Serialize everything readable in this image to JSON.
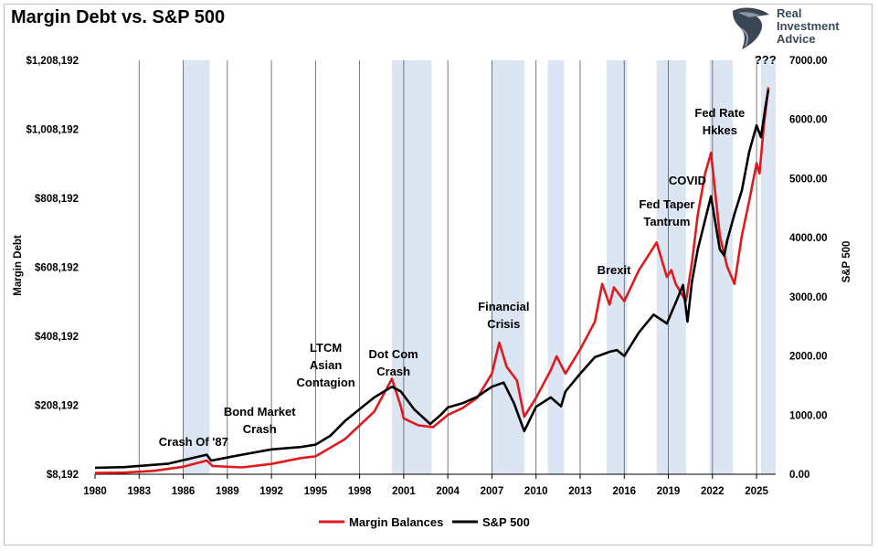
{
  "title": "Margin Debt vs. S&P 500",
  "logo": {
    "lines": [
      "Real",
      "Investment",
      "Advice"
    ],
    "icon": "eagle-head-icon"
  },
  "colors": {
    "margin": "#e0191e",
    "spx": "#000000",
    "shade": "#dce6f2",
    "grid": "#595959"
  },
  "chart_data": {
    "type": "line",
    "title": "Margin Debt vs. S&P 500",
    "ylabel": "Margin Debt",
    "y2label": "S&P 500",
    "ylim": [
      8192,
      1208192
    ],
    "y2lim": [
      0,
      7000
    ],
    "xlim": [
      1980,
      2026.3
    ],
    "y_ticks": [
      "$8,192",
      "$208,192",
      "$408,192",
      "$608,192",
      "$808,192",
      "$1,008,192",
      "$1,208,192"
    ],
    "y_tick_values": [
      8192,
      208192,
      408192,
      608192,
      808192,
      1008192,
      1208192
    ],
    "y2_ticks": [
      "0.00",
      "1000.00",
      "2000.00",
      "3000.00",
      "4000.00",
      "5000.00",
      "6000.00",
      "7000.00"
    ],
    "y2_tick_values": [
      0,
      1000,
      2000,
      3000,
      4000,
      5000,
      6000,
      7000
    ],
    "x_ticks": [
      "1980",
      "1983",
      "1986",
      "1989",
      "1992",
      "1995",
      "1998",
      "2001",
      "2004",
      "2007",
      "2010",
      "2013",
      "2016",
      "2019",
      "2022",
      "2025"
    ],
    "x_tick_values": [
      1980,
      1983,
      1986,
      1989,
      1992,
      1995,
      1998,
      2001,
      2004,
      2007,
      2010,
      2013,
      2016,
      2019,
      2022,
      2025
    ],
    "legend": {
      "placement": "bottom",
      "entries": [
        "Margin Balances",
        "S&P 500"
      ]
    },
    "shaded_periods": [
      [
        1986.0,
        1987.8
      ],
      [
        2000.2,
        2002.9
      ],
      [
        2007.0,
        2009.2
      ],
      [
        2010.8,
        2011.9
      ],
      [
        2014.8,
        2016.2
      ],
      [
        2018.2,
        2020.2
      ],
      [
        2021.8,
        2023.4
      ],
      [
        2025.3,
        2026.3
      ]
    ],
    "series": [
      {
        "name": "Margin Balances",
        "axis": "left",
        "x": [
          1980,
          1982,
          1984,
          1986,
          1987.6,
          1988,
          1990,
          1992,
          1994,
          1995,
          1996,
          1997,
          1998,
          1999,
          2000.2,
          2000.8,
          2001,
          2002,
          2003,
          2004,
          2005,
          2006,
          2007,
          2007.5,
          2008,
          2008.7,
          2009.2,
          2010,
          2011,
          2011.4,
          2012,
          2013,
          2014,
          2014.5,
          2015,
          2015.3,
          2016,
          2017,
          2018.2,
          2018.9,
          2019.2,
          2019.5,
          2020.2,
          2020.6,
          2021,
          2021.5,
          2021.9,
          2022.5,
          2023,
          2023.5,
          2024,
          2024.5,
          2025,
          2025.2,
          2025.5,
          2025.8
        ],
        "values": [
          12000,
          13000,
          18000,
          30000,
          48000,
          32000,
          28000,
          38000,
          55000,
          60000,
          85000,
          110000,
          150000,
          190000,
          285000,
          205000,
          170000,
          150000,
          145000,
          180000,
          200000,
          230000,
          300000,
          390000,
          320000,
          280000,
          175000,
          230000,
          310000,
          350000,
          300000,
          370000,
          450000,
          560000,
          500000,
          550000,
          510000,
          600000,
          680000,
          580000,
          600000,
          560000,
          510000,
          620000,
          760000,
          880000,
          940000,
          700000,
          610000,
          560000,
          700000,
          800000,
          910000,
          880000,
          1020000,
          1130000
        ]
      },
      {
        "name": "S&P 500",
        "axis": "right",
        "x": [
          1980,
          1982,
          1985,
          1987.6,
          1987.9,
          1990,
          1992,
          1994,
          1995,
          1996,
          1997,
          1998,
          1999,
          2000.2,
          2000.8,
          2001.7,
          2002.8,
          2003.5,
          2004,
          2005,
          2006,
          2007,
          2007.8,
          2008.5,
          2009.2,
          2010,
          2011,
          2011.7,
          2012,
          2013,
          2014,
          2015,
          2015.5,
          2016,
          2017,
          2018,
          2018.9,
          2019.5,
          2020.0,
          2020.3,
          2020.6,
          2021,
          2021.9,
          2022.5,
          2022.8,
          2023,
          2023.5,
          2024,
          2024.5,
          2025,
          2025.3,
          2025.6,
          2025.8
        ],
        "values": [
          110,
          120,
          180,
          330,
          230,
          330,
          420,
          460,
          500,
          650,
          900,
          1100,
          1300,
          1480,
          1400,
          1100,
          850,
          1000,
          1130,
          1200,
          1310,
          1480,
          1550,
          1200,
          730,
          1140,
          1300,
          1150,
          1400,
          1700,
          1980,
          2070,
          2100,
          2000,
          2400,
          2700,
          2550,
          2900,
          3200,
          2580,
          3250,
          3800,
          4700,
          3800,
          3700,
          3950,
          4400,
          4800,
          5450,
          5900,
          5700,
          6200,
          6500
        ]
      }
    ],
    "annotations": [
      {
        "lines": [
          "Crash Of '87"
        ],
        "x": 1986.7
      },
      {
        "lines": [
          "Bond Market",
          "Crash"
        ],
        "x": 1991.2
      },
      {
        "lines": [
          "LTCM",
          "Asian",
          "Contagion"
        ],
        "x": 1995.7
      },
      {
        "lines": [
          "Dot Com",
          "Crash"
        ],
        "x": 2000.3
      },
      {
        "lines": [
          "Financial",
          "Crisis"
        ],
        "x": 2007.8
      },
      {
        "lines": [
          "Brexit"
        ],
        "x": 2015.3
      },
      {
        "lines": [
          "Fed Taper",
          "Tantrum"
        ],
        "x": 2018.9
      },
      {
        "lines": [
          "COVID"
        ],
        "x": 2020.3
      },
      {
        "lines": [
          "Fed Rate",
          "Hkkes"
        ],
        "x": 2022.5
      },
      {
        "lines": [
          "???"
        ],
        "x": 2025.6
      }
    ]
  }
}
